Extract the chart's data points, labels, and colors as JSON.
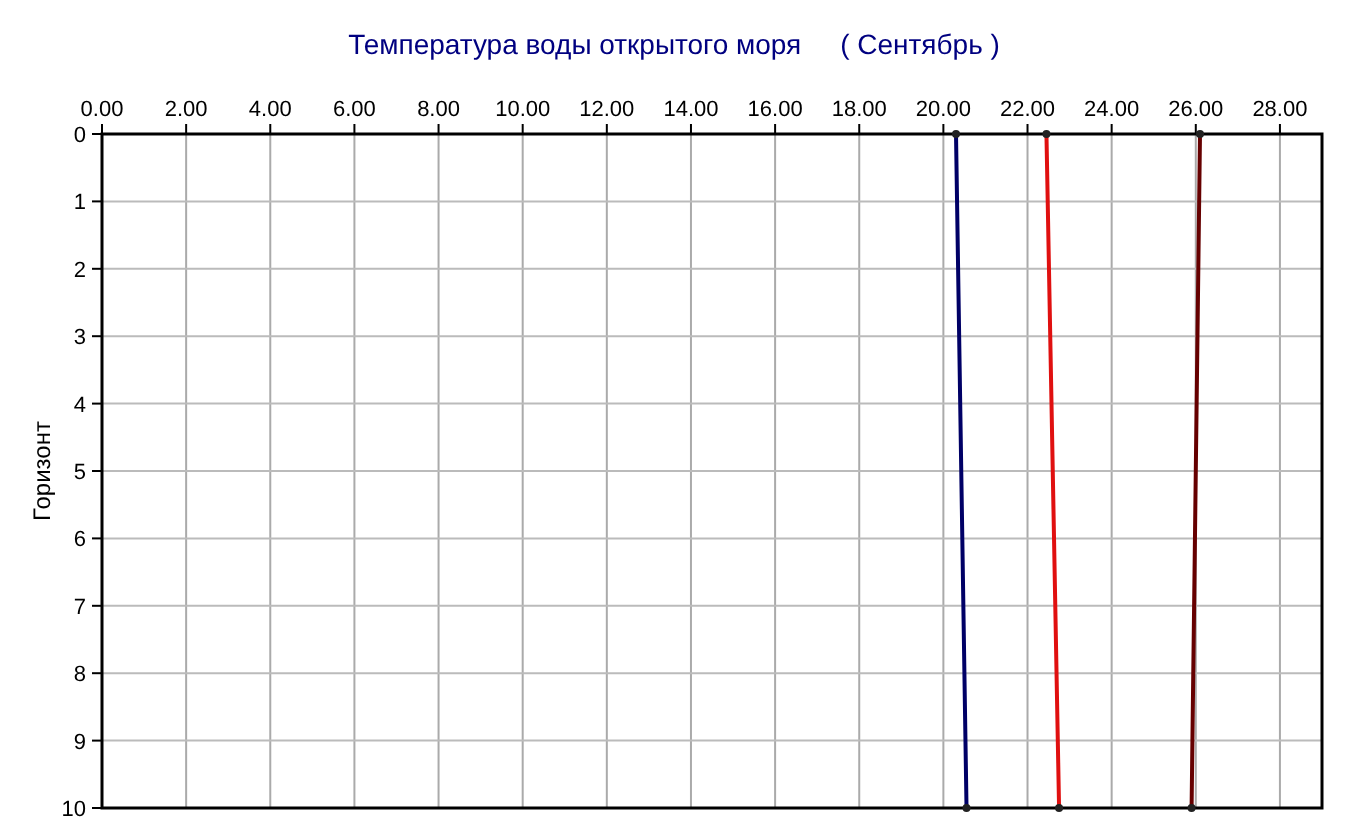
{
  "chart_data": {
    "type": "line",
    "title": "Температура воды открытого моря     ( Сентябрь )",
    "ylabel": "Горизонт",
    "series": [
      {
        "color": "#000066",
        "x": [
          20.3,
          20.55
        ],
        "values": [
          0,
          10
        ]
      },
      {
        "color": "#e01010",
        "x": [
          22.45,
          22.75
        ],
        "values": [
          0,
          10
        ]
      },
      {
        "color": "#660000",
        "x": [
          26.1,
          25.9
        ],
        "values": [
          0,
          10
        ]
      }
    ],
    "xlim": [
      0,
      29
    ],
    "xticks": [
      {
        "value": 0,
        "label": "0.00"
      },
      {
        "value": 2,
        "label": "2.00"
      },
      {
        "value": 4,
        "label": "4.00"
      },
      {
        "value": 6,
        "label": "6.00"
      },
      {
        "value": 8,
        "label": "8.00"
      },
      {
        "value": 10,
        "label": "10.00"
      },
      {
        "value": 12,
        "label": "12.00"
      },
      {
        "value": 14,
        "label": "14.00"
      },
      {
        "value": 16,
        "label": "16.00"
      },
      {
        "value": 18,
        "label": "18.00"
      },
      {
        "value": 20,
        "label": "20.00"
      },
      {
        "value": 22,
        "label": "22.00"
      },
      {
        "value": 24,
        "label": "24.00"
      },
      {
        "value": 26,
        "label": "26.00"
      },
      {
        "value": 28,
        "label": "28.00"
      }
    ],
    "ylim": [
      10,
      0
    ],
    "yticks": [
      0,
      1,
      2,
      3,
      4,
      5,
      6,
      7,
      8,
      9,
      10
    ],
    "grid": true,
    "marker": "circle",
    "line_style": "solid"
  }
}
